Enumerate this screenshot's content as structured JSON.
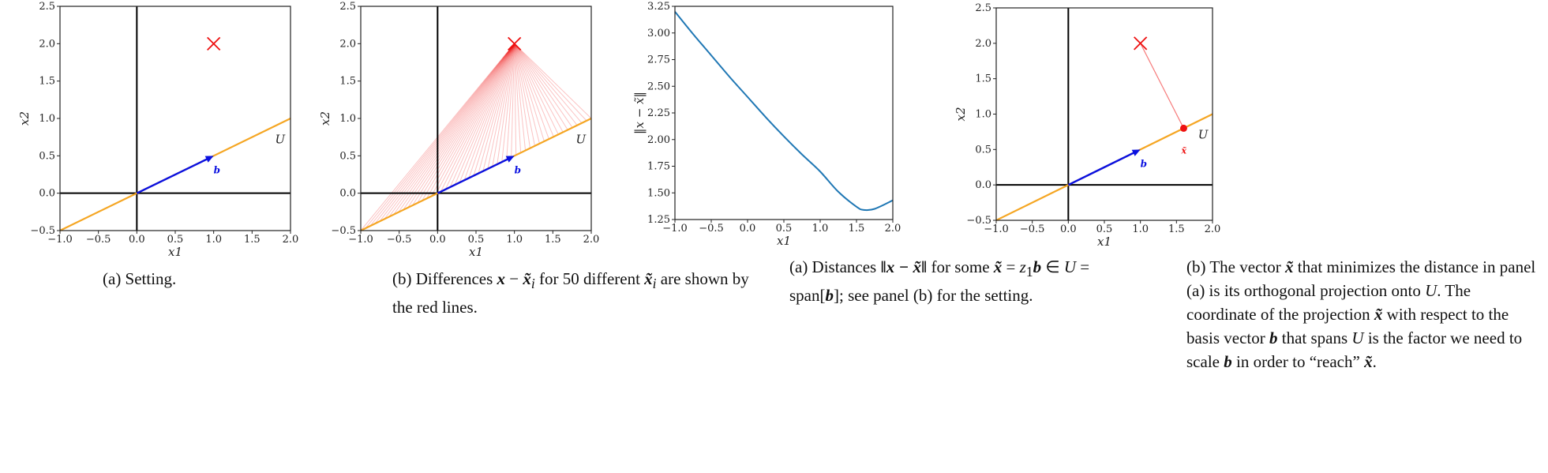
{
  "chart_data": [
    {
      "type": "line",
      "title": "",
      "xlabel": "x1",
      "ylabel": "x2",
      "xlim": [
        -1.0,
        2.0
      ],
      "ylim": [
        -0.5,
        2.5
      ],
      "xticks": [
        "−1.0",
        "−0.5",
        "0.0",
        "0.5",
        "1.0",
        "1.5",
        "2.0"
      ],
      "yticks": [
        "−0.5",
        "0.0",
        "0.5",
        "1.0",
        "1.5",
        "2.0",
        "2.5"
      ],
      "subspace_U": {
        "label": "U",
        "x": [
          -1.0,
          2.0
        ],
        "y": [
          -0.5,
          1.0
        ],
        "color": "#f5a623"
      },
      "basis_vector_b": {
        "label": "b",
        "from": [
          0,
          0
        ],
        "to": [
          1.0,
          0.5
        ],
        "color": "#0a10e0"
      },
      "point_x": {
        "marker": "x",
        "x": 1.0,
        "y": 2.0,
        "color": "#ee1111"
      },
      "caption": "(a) Setting."
    },
    {
      "type": "line",
      "title": "",
      "xlabel": "x1",
      "ylabel": "x2",
      "xlim": [
        -1.0,
        2.0
      ],
      "ylim": [
        -0.5,
        2.5
      ],
      "xticks": [
        "−1.0",
        "−0.5",
        "0.0",
        "0.5",
        "1.0",
        "1.5",
        "2.0"
      ],
      "yticks": [
        "−0.5",
        "0.0",
        "0.5",
        "1.0",
        "1.5",
        "2.0",
        "2.5"
      ],
      "subspace_U": {
        "label": "U",
        "x": [
          -1.0,
          2.0
        ],
        "y": [
          -0.5,
          1.0
        ],
        "color": "#f5a623"
      },
      "basis_vector_b": {
        "label": "b",
        "from": [
          0,
          0
        ],
        "to": [
          1.0,
          0.5
        ],
        "color": "#0a10e0"
      },
      "point_x": {
        "marker": "x",
        "x": 1.0,
        "y": 2.0,
        "color": "#ee1111"
      },
      "difference_lines": {
        "count": 50,
        "from": [
          1.0,
          2.0
        ],
        "z1_range": [
          -1.0,
          2.0
        ],
        "color": "#ee1111"
      },
      "caption_parts": [
        "(b) Differences ",
        "x",
        " − ",
        "x̃",
        "i",
        " for 50 different ",
        "x̃",
        "i",
        " are shown by the red lines."
      ]
    },
    {
      "type": "line",
      "title": "",
      "xlabel": "x1",
      "ylabel": "‖x − x̃‖",
      "xlim": [
        -1.0,
        2.0
      ],
      "ylim": [
        1.25,
        3.25
      ],
      "xticks": [
        "−1.0",
        "−0.5",
        "0.0",
        "0.5",
        "1.0",
        "1.5",
        "2.0"
      ],
      "yticks": [
        "1.25",
        "1.50",
        "1.75",
        "2.00",
        "2.25",
        "2.50",
        "2.75",
        "3.00",
        "3.25"
      ],
      "series": [
        {
          "color": "#1f77b4",
          "x": [
            -1.0,
            -0.75,
            -0.5,
            -0.25,
            0.0,
            0.25,
            0.5,
            0.75,
            1.0,
            1.25,
            1.5,
            1.6,
            1.75,
            2.0
          ],
          "y": [
            3.2,
            2.99,
            2.79,
            2.59,
            2.4,
            2.21,
            2.03,
            1.86,
            1.7,
            1.51,
            1.37,
            1.34,
            1.35,
            1.43
          ]
        }
      ],
      "caption_parts": [
        "(a) Distances ",
        "‖x − x̃‖",
        " for some ",
        "x̃",
        " = ",
        "z",
        "1",
        "b",
        " ∈ ",
        "U",
        " = span[",
        "b",
        "]; see panel (b) for the setting."
      ]
    },
    {
      "type": "line",
      "title": "",
      "xlabel": "x1",
      "ylabel": "x2",
      "xlim": [
        -1.0,
        2.0
      ],
      "ylim": [
        -0.5,
        2.5
      ],
      "xticks": [
        "−1.0",
        "−0.5",
        "0.0",
        "0.5",
        "1.0",
        "1.5",
        "2.0"
      ],
      "yticks": [
        "−0.5",
        "0.0",
        "0.5",
        "1.0",
        "1.5",
        "2.0",
        "2.5"
      ],
      "subspace_U": {
        "label": "U",
        "x": [
          -1.0,
          2.0
        ],
        "y": [
          -0.5,
          1.0
        ],
        "color": "#f5a623"
      },
      "basis_vector_b": {
        "label": "b",
        "from": [
          0,
          0
        ],
        "to": [
          1.0,
          0.5
        ],
        "color": "#0a10e0"
      },
      "point_x": {
        "marker": "x",
        "x": 1.0,
        "y": 2.0,
        "color": "#ee1111"
      },
      "projection_point": {
        "label": "x̃",
        "x": 1.6,
        "y": 0.8,
        "color": "#ee1111"
      },
      "caption_parts": [
        "(b) The vector ",
        "x̃",
        " that minimizes the distance in panel (a) is its orthogonal projection onto ",
        "U",
        ". The coordinate of the projection ",
        "x̃",
        " with respect to the basis vector ",
        "b",
        " that spans ",
        "U",
        " is the factor we need to scale ",
        "b",
        " in order to “reach” ",
        "x̃",
        "."
      ]
    }
  ]
}
